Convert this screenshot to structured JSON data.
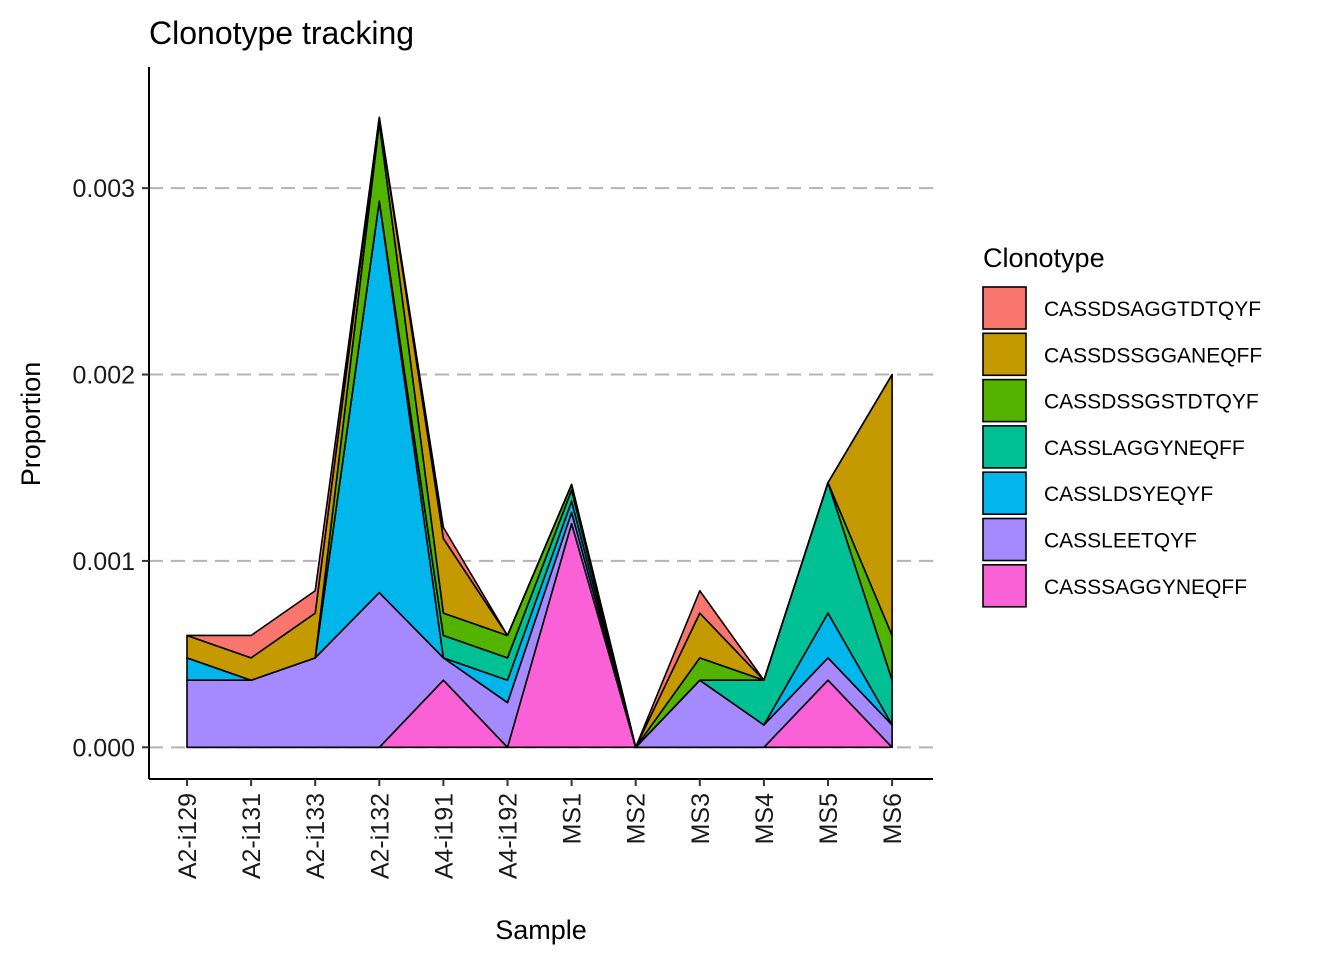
{
  "chart_data": {
    "type": "area",
    "stacked": true,
    "title": "Clonotype tracking",
    "xlabel": "Sample",
    "ylabel": "Proportion",
    "ylim": [
      -0.00017,
      0.00365
    ],
    "yticks": [
      0,
      0.001,
      0.002,
      0.003
    ],
    "ytick_labels": [
      "0.000",
      "0.001",
      "0.002",
      "0.003"
    ],
    "grid": "horizontal-dashed",
    "legend_title": "Clonotype",
    "legend_position": "right",
    "categories": [
      "A2-i129",
      "A2-i131",
      "A2-i133",
      "A2-i132",
      "A4-i191",
      "A4-i192",
      "MS1",
      "MS2",
      "MS3",
      "MS4",
      "MS5",
      "MS6"
    ],
    "series": [
      {
        "name": "CASSDSAGGTDTQYF",
        "color": "#F8766D",
        "values": [
          0,
          0.00012,
          0.00012,
          0,
          6e-05,
          0,
          0,
          0,
          0.00012,
          0,
          0,
          0
        ]
      },
      {
        "name": "CASSDSSGGANEQFF",
        "color": "#C49A00",
        "values": [
          0.00012,
          0.00012,
          0.00024,
          3e-05,
          0.0004,
          0,
          0,
          0,
          0.00024,
          0,
          0,
          0.0014
        ]
      },
      {
        "name": "CASSDSSGSTDTQYF",
        "color": "#53B400",
        "values": [
          0,
          0,
          0,
          0.00042,
          0.00012,
          0.00012,
          3e-05,
          0,
          0.00012,
          0,
          0,
          0.00024
        ]
      },
      {
        "name": "CASSLAGGYNEQFF",
        "color": "#00C094",
        "values": [
          0,
          0,
          0,
          0,
          0.00012,
          0.00012,
          6e-05,
          0,
          0,
          0.00024,
          0.0007,
          0.00024
        ]
      },
      {
        "name": "CASSLDSYEQYF",
        "color": "#00B6EB",
        "values": [
          0.00012,
          0,
          0,
          0.0021,
          0,
          0.00012,
          6e-05,
          0,
          0,
          0,
          0.00024,
          0
        ]
      },
      {
        "name": "CASSLEETQYF",
        "color": "#A58AFF",
        "values": [
          0.00036,
          0.00036,
          0.00048,
          0.00083,
          0.00012,
          0.00024,
          6e-05,
          0,
          0.00036,
          0.00012,
          0.00012,
          0.00012
        ]
      },
      {
        "name": "CASSSAGGYNEQFF",
        "color": "#FB61D7",
        "values": [
          0,
          0,
          0,
          0,
          0.00036,
          0,
          0.0012,
          0,
          0,
          0,
          0.00036,
          0
        ]
      }
    ]
  }
}
